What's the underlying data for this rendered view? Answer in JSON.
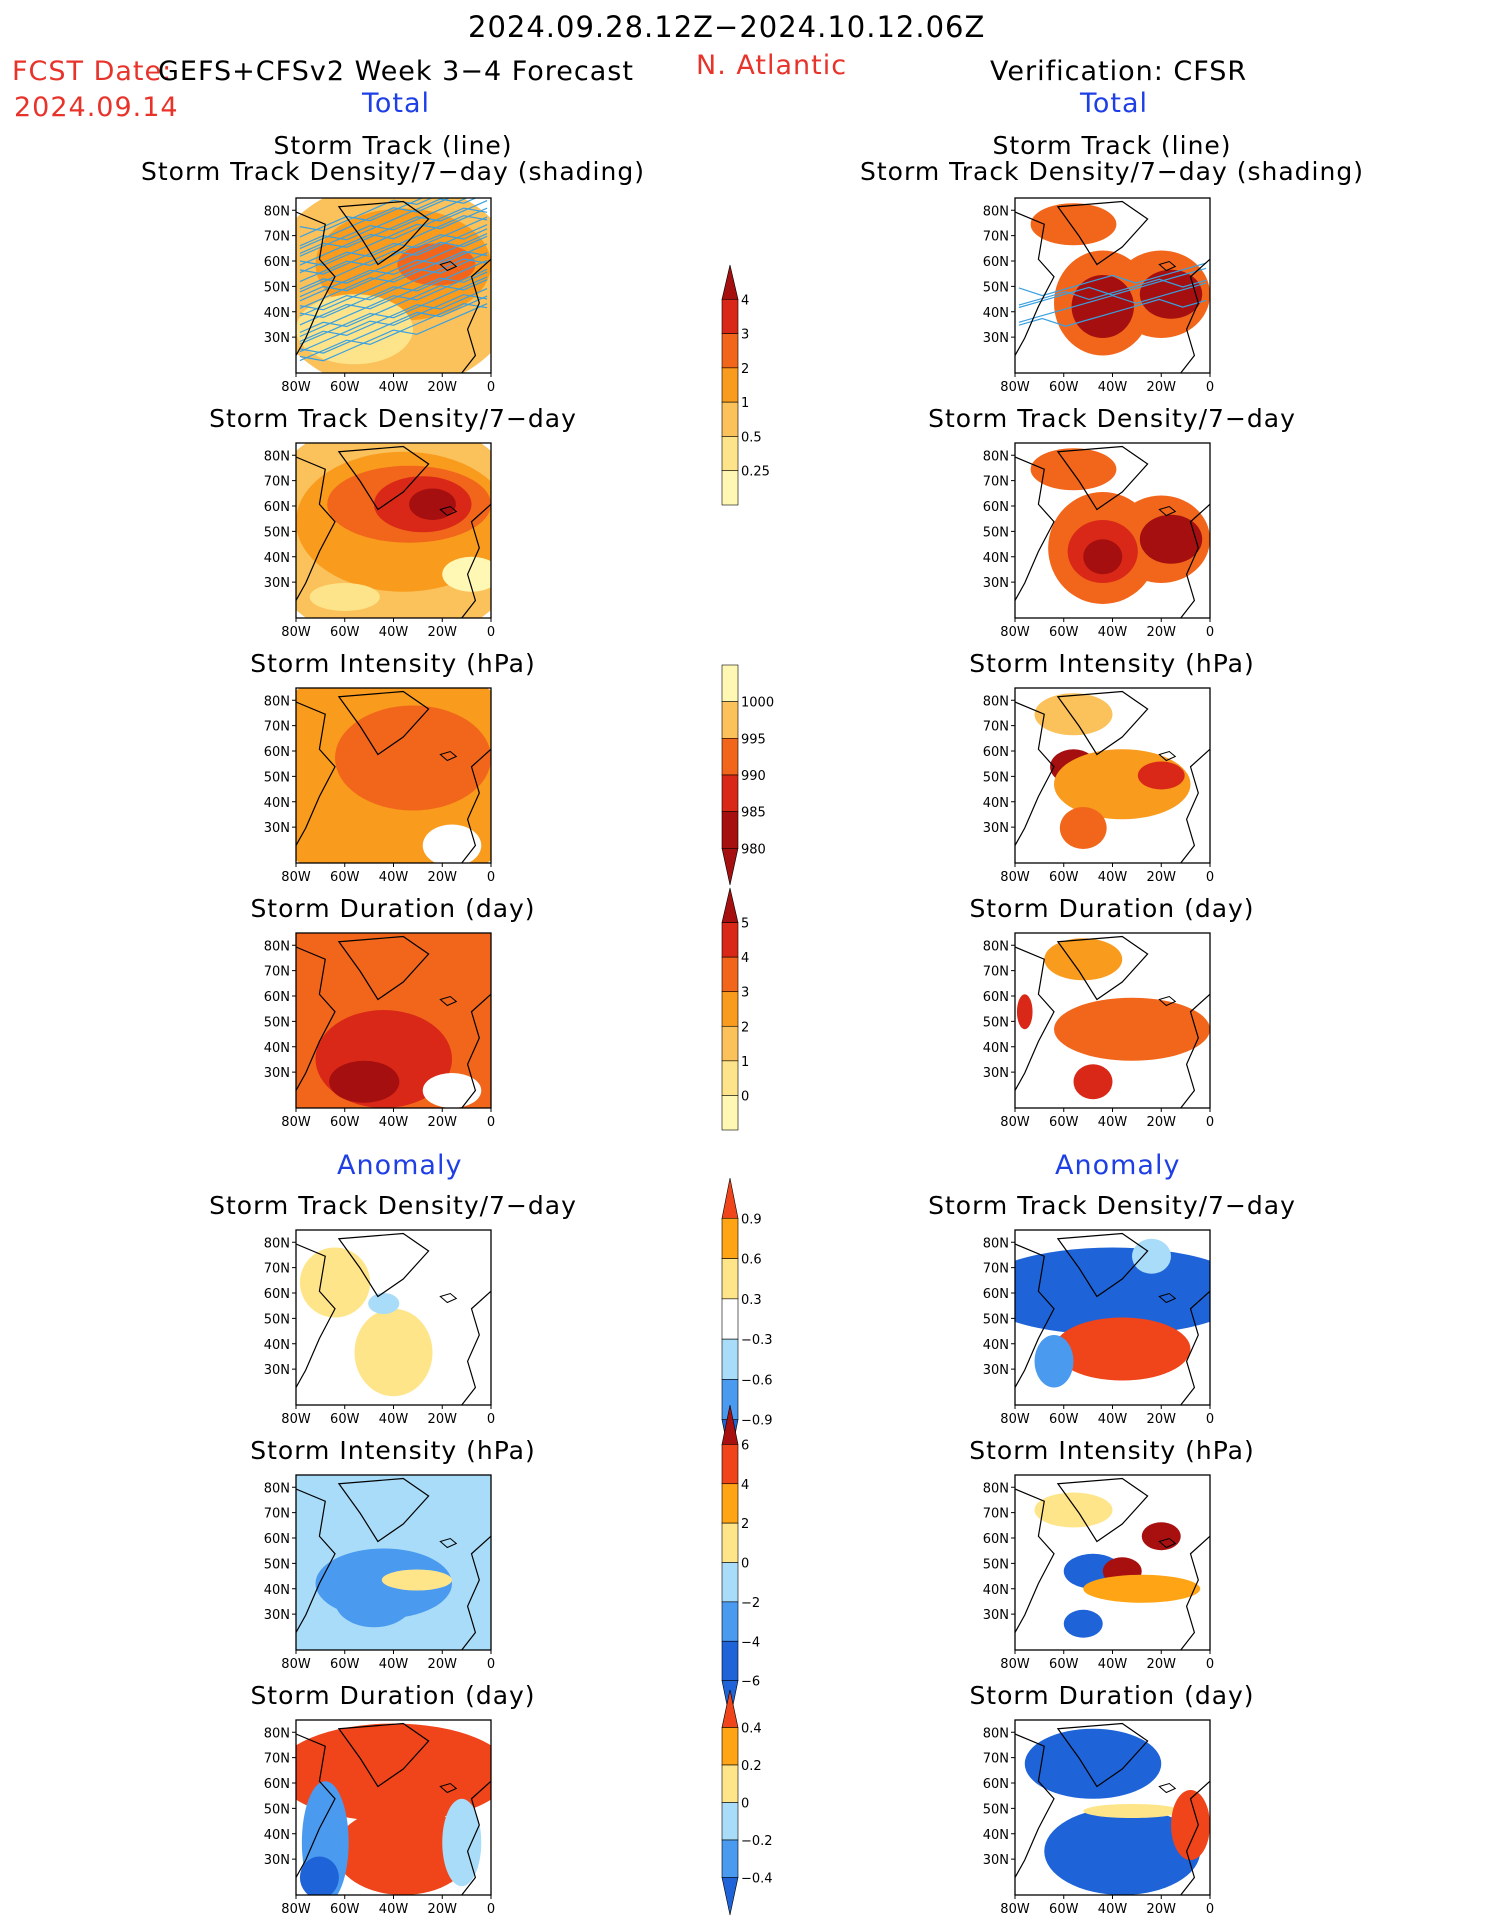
{
  "header": {
    "period": "2024.09.28.12Z−2024.10.12.06Z",
    "fcst_label": "FCST Date:",
    "fcst_date": "2024.09.14",
    "model": "GEFS+CFSv2 Week 3−4 Forecast",
    "region": "N. Atlantic",
    "verification": "Verification: CFSR",
    "total_left": "Total",
    "total_right": "Total",
    "anomaly_left": "Anomaly",
    "anomaly_right": "Anomaly"
  },
  "panels": {
    "track_title_1": "Storm Track (line)",
    "track_title_2": "Storm Track Density/7−day (shading)",
    "density": "Storm Track Density/7−day",
    "intensity": "Storm Intensity (hPa)",
    "duration": "Storm Duration (day)"
  },
  "axes": {
    "lat_ticks": [
      "80N",
      "70N",
      "60N",
      "50N",
      "40N",
      "30N"
    ],
    "lon_ticks": [
      "80W",
      "60W",
      "40W",
      "20W",
      "0"
    ]
  },
  "colorbars": {
    "density_total": [
      "4",
      "3",
      "2",
      "1",
      "0.5",
      "0.25"
    ],
    "intensity_total": [
      "1000",
      "995",
      "990",
      "985",
      "980"
    ],
    "duration_total": [
      "5",
      "4",
      "3",
      "2",
      "1",
      "0"
    ],
    "density_anom": [
      "0.9",
      "0.6",
      "0.3",
      "−0.3",
      "−0.6",
      "−0.9"
    ],
    "intensity_anom": [
      "6",
      "4",
      "2",
      "0",
      "−2",
      "−4",
      "−6"
    ],
    "duration_anom": [
      "0.4",
      "0.2",
      "0",
      "−0.2",
      "−0.4"
    ]
  },
  "colors": {
    "total_scale": [
      "#fff8b4",
      "#fde48a",
      "#fbc15a",
      "#f99b1c",
      "#f2661b",
      "#d92818",
      "#a50f0f"
    ],
    "anom_scale": [
      "#1e64d8",
      "#4a9af0",
      "#a8dcf8",
      "#ffffff",
      "#ffe58a",
      "#ffa414",
      "#f0441a",
      "#a81010"
    ],
    "track_line": "#3aa0e0",
    "header_red": "#e8332b",
    "header_blue": "#1f3fe6"
  },
  "chart_data": [
    {
      "type": "heatmap",
      "title": "Storm Track (line) / Storm Track Density/7−day (shading)",
      "column": "GEFS+CFSv2 Week 3−4 Forecast",
      "region": "N. Atlantic",
      "xlim": [
        "80W",
        "0"
      ],
      "ylim": [
        "25N",
        "85N"
      ],
      "colorbar": [
        0.25,
        0.5,
        1,
        2,
        3,
        4
      ],
      "overlay": "storm track lines"
    },
    {
      "type": "heatmap",
      "title": "Storm Track Density/7−day",
      "column": "GEFS+CFSv2 Week 3−4 Forecast",
      "xlim": [
        "80W",
        "0"
      ],
      "ylim": [
        "25N",
        "85N"
      ],
      "colorbar": [
        0.25,
        0.5,
        1,
        2,
        3,
        4
      ],
      "max_region": "60N 25W",
      "max_value": 4
    },
    {
      "type": "heatmap",
      "title": "Storm Intensity (hPa)",
      "column": "GEFS+CFSv2 Week 3−4 Forecast",
      "xlim": [
        "80W",
        "0"
      ],
      "ylim": [
        "25N",
        "85N"
      ],
      "colorbar": [
        1000,
        995,
        990,
        985,
        980
      ]
    },
    {
      "type": "heatmap",
      "title": "Storm Duration (day)",
      "column": "GEFS+CFSv2 Week 3−4 Forecast",
      "xlim": [
        "80W",
        "0"
      ],
      "ylim": [
        "25N",
        "85N"
      ],
      "colorbar": [
        0,
        1,
        2,
        3,
        4,
        5
      ]
    },
    {
      "type": "heatmap",
      "title": "Storm Track (line) / Storm Track Density/7−day (shading)",
      "column": "Verification: CFSR",
      "xlim": [
        "80W",
        "0"
      ],
      "ylim": [
        "25N",
        "85N"
      ],
      "colorbar": [
        0.25,
        0.5,
        1,
        2,
        3,
        4
      ]
    },
    {
      "type": "heatmap",
      "title": "Storm Track Density/7−day",
      "column": "Verification: CFSR",
      "xlim": [
        "80W",
        "0"
      ],
      "ylim": [
        "25N",
        "85N"
      ],
      "colorbar": [
        0.25,
        0.5,
        1,
        2,
        3,
        4
      ],
      "maxima": [
        "45N 45W",
        "50N 20W"
      ]
    },
    {
      "type": "heatmap",
      "title": "Storm Intensity (hPa)",
      "column": "Verification: CFSR",
      "xlim": [
        "80W",
        "0"
      ],
      "ylim": [
        "25N",
        "85N"
      ],
      "colorbar": [
        1000,
        995,
        990,
        985,
        980
      ]
    },
    {
      "type": "heatmap",
      "title": "Storm Duration (day)",
      "column": "Verification: CFSR",
      "xlim": [
        "80W",
        "0"
      ],
      "ylim": [
        "25N",
        "85N"
      ],
      "colorbar": [
        0,
        1,
        2,
        3,
        4,
        5
      ]
    },
    {
      "type": "heatmap",
      "title": "Anomaly Storm Track Density/7−day",
      "column": "GEFS+CFSv2 Week 3−4 Forecast",
      "xlim": [
        "80W",
        "0"
      ],
      "ylim": [
        "25N",
        "85N"
      ],
      "colorbar": [
        -0.9,
        -0.6,
        -0.3,
        0.3,
        0.6,
        0.9
      ]
    },
    {
      "type": "heatmap",
      "title": "Anomaly Storm Intensity (hPa)",
      "column": "GEFS+CFSv2 Week 3−4 Forecast",
      "xlim": [
        "80W",
        "0"
      ],
      "ylim": [
        "25N",
        "85N"
      ],
      "colorbar": [
        -6,
        -4,
        -2,
        0,
        2,
        4,
        6
      ]
    },
    {
      "type": "heatmap",
      "title": "Anomaly Storm Duration (day)",
      "column": "GEFS+CFSv2 Week 3−4 Forecast",
      "xlim": [
        "80W",
        "0"
      ],
      "ylim": [
        "25N",
        "85N"
      ],
      "colorbar": [
        -0.4,
        -0.2,
        0,
        0.2,
        0.4
      ]
    },
    {
      "type": "heatmap",
      "title": "Anomaly Storm Track Density/7−day",
      "column": "Verification: CFSR",
      "xlim": [
        "80W",
        "0"
      ],
      "ylim": [
        "25N",
        "85N"
      ],
      "colorbar": [
        -0.9,
        -0.6,
        -0.3,
        0.3,
        0.6,
        0.9
      ]
    },
    {
      "type": "heatmap",
      "title": "Anomaly Storm Intensity (hPa)",
      "column": "Verification: CFSR",
      "xlim": [
        "80W",
        "0"
      ],
      "ylim": [
        "25N",
        "85N"
      ],
      "colorbar": [
        -6,
        -4,
        -2,
        0,
        2,
        4,
        6
      ]
    },
    {
      "type": "heatmap",
      "title": "Anomaly Storm Duration (day)",
      "column": "Verification: CFSR",
      "xlim": [
        "80W",
        "0"
      ],
      "ylim": [
        "25N",
        "85N"
      ],
      "colorbar": [
        -0.4,
        -0.2,
        0,
        0.2,
        0.4
      ]
    }
  ]
}
